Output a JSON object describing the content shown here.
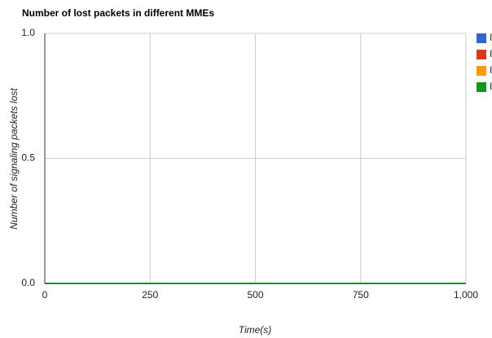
{
  "chart_data": {
    "type": "line",
    "title": "Number of lost packets in different MMEs",
    "x_label": "Time(s)",
    "y_label": "Number of signaling packets lost",
    "x": [
      0,
      1000
    ],
    "series": [
      {
        "name": "I",
        "color": "#3366cc",
        "values": [
          0,
          0
        ]
      },
      {
        "name": "I",
        "color": "#dc3912",
        "values": [
          0,
          0
        ]
      },
      {
        "name": "I",
        "color": "#ff9900",
        "values": [
          0,
          0
        ]
      },
      {
        "name": "I",
        "color": "#109618",
        "values": [
          0,
          0
        ]
      }
    ],
    "xlim": [
      0,
      1000
    ],
    "xticks": [
      0,
      250,
      500,
      750,
      {
        "value": 1000,
        "label": "1,000"
      }
    ],
    "ylim": [
      0,
      1
    ],
    "yticks": [
      {
        "value": 0,
        "label": "0.0"
      },
      {
        "value": 0.5,
        "label": "0.5"
      },
      {
        "value": 1,
        "label": "1.0"
      }
    ],
    "grid": true,
    "legend": "right"
  }
}
